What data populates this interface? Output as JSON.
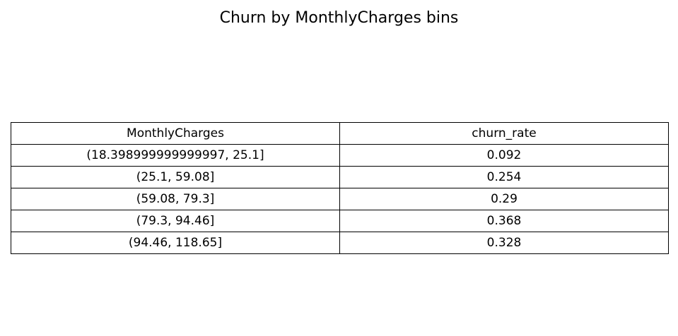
{
  "chart_data": {
    "type": "table",
    "title": "Churn by MonthlyCharges bins",
    "columns": [
      "MonthlyCharges",
      "churn_rate"
    ],
    "rows": [
      [
        "(18.398999999999997, 25.1]",
        "0.092"
      ],
      [
        "(25.1, 59.08]",
        "0.254"
      ],
      [
        "(59.08, 79.3]",
        "0.29"
      ],
      [
        "(79.3, 94.46]",
        "0.368"
      ],
      [
        "(94.46, 118.65]",
        "0.328"
      ]
    ]
  }
}
